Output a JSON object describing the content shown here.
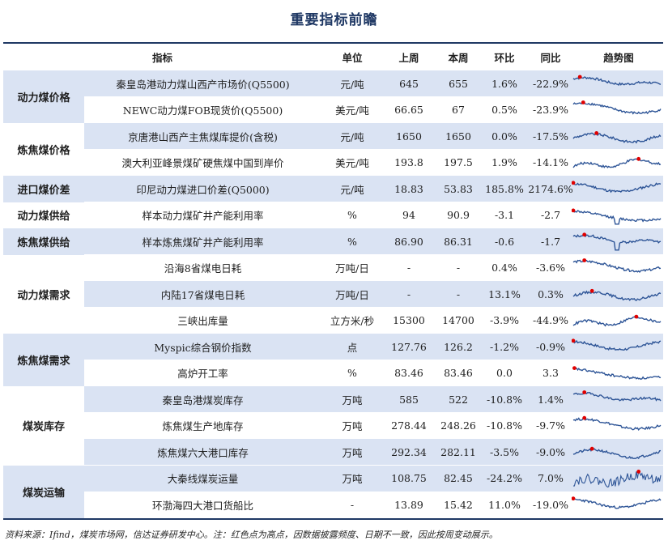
{
  "title": "重要指标前瞻",
  "headers": {
    "indicator": "指标",
    "unit": "单位",
    "last_week": "上周",
    "this_week": "本周",
    "wow": "环比",
    "yoy": "同比",
    "trend": "趋势图"
  },
  "categories": [
    {
      "label": "动力煤价格",
      "rows": 2
    },
    {
      "label": "炼焦煤价格",
      "rows": 2
    },
    {
      "label": "进口煤价差",
      "rows": 1
    },
    {
      "label": "动力煤供给",
      "rows": 1
    },
    {
      "label": "炼焦煤供给",
      "rows": 1
    },
    {
      "label": "动力煤需求",
      "rows": 3
    },
    {
      "label": "炼焦煤需求",
      "rows": 2
    },
    {
      "label": "煤炭库存",
      "rows": 3
    },
    {
      "label": "煤炭运输",
      "rows": 2
    }
  ],
  "rows": [
    {
      "indicator": "秦皇岛港动力煤山西产市场价(Q5500)",
      "unit": "元/吨",
      "last_week": "645",
      "this_week": "655",
      "wow": "1.6%",
      "yoy": "-22.9%"
    },
    {
      "indicator": "NEWC动力煤FOB现货价(Q5500)",
      "unit": "美元/吨",
      "last_week": "66.65",
      "this_week": "67",
      "wow": "0.5%",
      "yoy": "-23.9%"
    },
    {
      "indicator": "京唐港山西产主焦煤库提价(含税)",
      "unit": "元/吨",
      "last_week": "1650",
      "this_week": "1650",
      "wow": "0.0%",
      "yoy": "-17.5%"
    },
    {
      "indicator": "澳大利亚峰景煤矿硬焦煤中国到岸价",
      "unit": "美元/吨",
      "last_week": "193.8",
      "this_week": "197.5",
      "wow": "1.9%",
      "yoy": "-14.1%"
    },
    {
      "indicator": "印尼动力煤进口价差(Q5000)",
      "unit": "元/吨",
      "last_week": "18.83",
      "this_week": "53.83",
      "wow": "185.8%",
      "yoy": "2174.6%"
    },
    {
      "indicator": "样本动力煤矿井产能利用率",
      "unit": "%",
      "last_week": "94",
      "this_week": "90.9",
      "wow": "-3.1",
      "yoy": "-2.7"
    },
    {
      "indicator": "样本炼焦煤矿井产能利用率",
      "unit": "%",
      "last_week": "86.90",
      "this_week": "86.31",
      "wow": "-0.6",
      "yoy": "-1.7"
    },
    {
      "indicator": "沿海8省煤电日耗",
      "unit": "万吨/日",
      "last_week": "-",
      "this_week": "-",
      "wow": "0.4%",
      "yoy": "-3.6%"
    },
    {
      "indicator": "内陆17省煤电日耗",
      "unit": "万吨/日",
      "last_week": "-",
      "this_week": "-",
      "wow": "13.1%",
      "yoy": "0.3%"
    },
    {
      "indicator": "三峡出库量",
      "unit": "立方米/秒",
      "last_week": "15300",
      "this_week": "14700",
      "wow": "-3.9%",
      "yoy": "-44.9%"
    },
    {
      "indicator": "Myspic综合钢价指数",
      "unit": "点",
      "last_week": "127.76",
      "this_week": "126.2",
      "wow": "-1.2%",
      "yoy": "-0.9%"
    },
    {
      "indicator": "高炉开工率",
      "unit": "%",
      "last_week": "83.46",
      "this_week": "83.46",
      "wow": "0.0",
      "yoy": "3.3"
    },
    {
      "indicator": "秦皇岛港煤炭库存",
      "unit": "万吨",
      "last_week": "585",
      "this_week": "522",
      "wow": "-10.8%",
      "yoy": "1.4%"
    },
    {
      "indicator": "炼焦煤生产地库存",
      "unit": "万吨",
      "last_week": "278.44",
      "this_week": "248.26",
      "wow": "-10.8%",
      "yoy": "-9.7%"
    },
    {
      "indicator": "炼焦煤六大港口库存",
      "unit": "万吨",
      "last_week": "292.34",
      "this_week": "282.11",
      "wow": "-3.5%",
      "yoy": "-9.0%"
    },
    {
      "indicator": "大秦线煤炭运量",
      "unit": "万吨",
      "last_week": "108.75",
      "this_week": "82.45",
      "wow": "-24.2%",
      "yoy": "7.0%"
    },
    {
      "indicator": "环渤海四大港口货船比",
      "unit": "-",
      "last_week": "13.89",
      "this_week": "15.42",
      "wow": "11.0%",
      "yoy": "-19.0%"
    }
  ],
  "colors": {
    "header_line": "#1f3864",
    "shade": "#dae3f3",
    "sparkline": "#2e5597",
    "peak_dot": "#e00000",
    "title": "#1f3864"
  },
  "source": "资料来源：Ifind，煤炭市场网，信达证券研发中心。注：红色点为高点，因数据披露频度、日期不一致，因此按周变动展示。"
}
